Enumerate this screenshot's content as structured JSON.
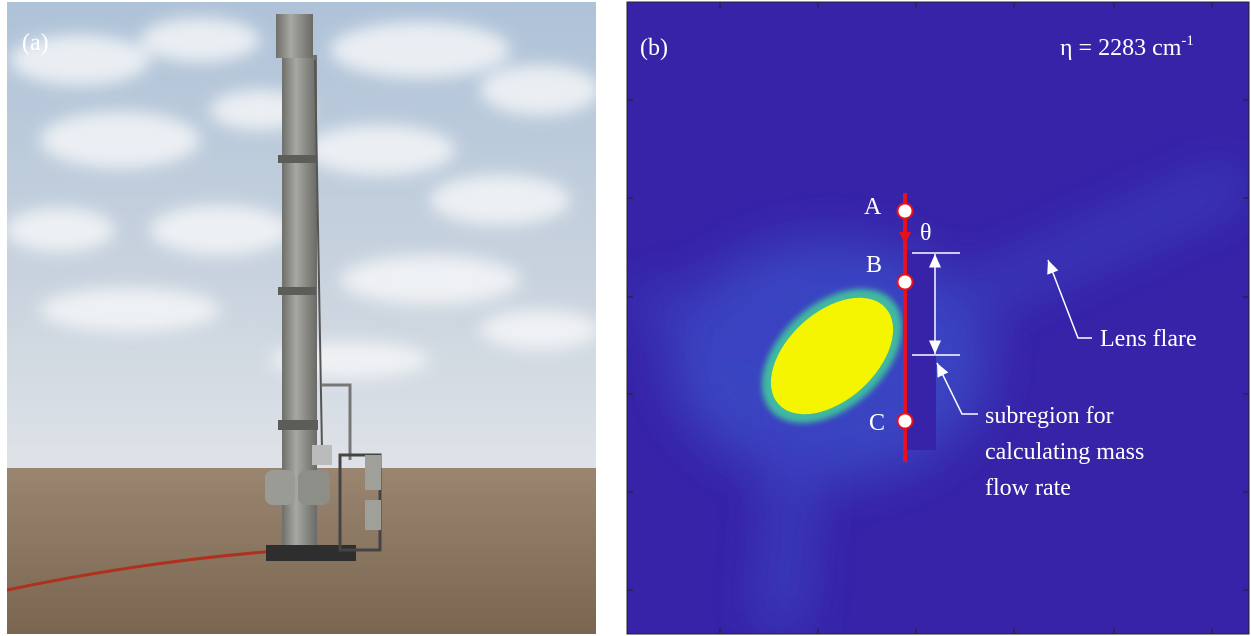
{
  "panel_a": {
    "label": "(a)"
  },
  "panel_b": {
    "label": "(b)",
    "wavenumber": {
      "text": "η = 2283 cm",
      "superscript": "-1"
    },
    "points": [
      "A",
      "B",
      "C"
    ],
    "angle_label": "θ",
    "annotations": {
      "lens_flare": "Lens flare",
      "subregion": [
        "subregion for",
        "calculating mass",
        "flow rate"
      ]
    }
  }
}
